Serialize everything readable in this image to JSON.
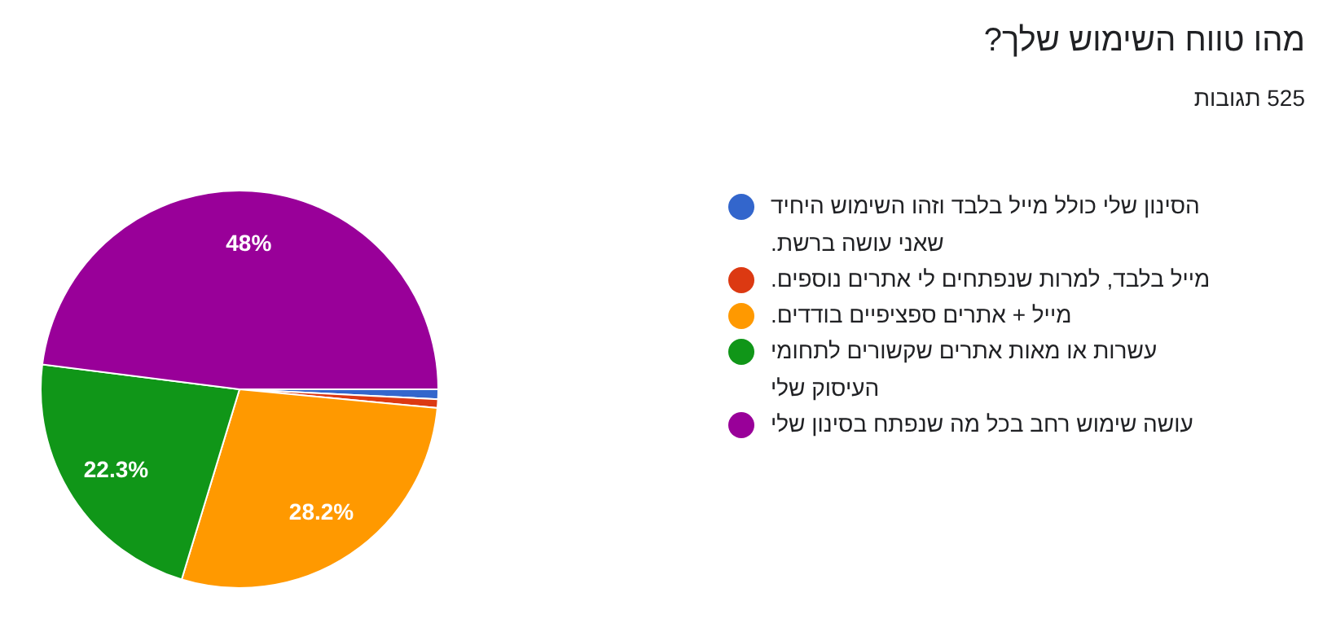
{
  "chart_data": {
    "type": "pie",
    "title": "מהו טווח השימוש שלך?",
    "subtitle": "525 תגובות",
    "categories": [
      "הסינון שלי כולל מייל בלבד וזהו השימוש היחיד שאני עושה ברשת.",
      "מייל בלבד, למרות שנפתחים לי אתרים נוספים.",
      "מייל + אתרים ספציפיים בודדים.",
      "עשרות או מאות אתרים שקשורים לתחומי העיסוק שלי",
      "עושה שימוש רחב בכל מה שנפתח בסינון שלי"
    ],
    "values": [
      0.8,
      0.7,
      28.2,
      22.3,
      48
    ],
    "colors": [
      "#3366cc",
      "#dc3912",
      "#ff9900",
      "#109618",
      "#990099"
    ],
    "value_labels": [
      null,
      null,
      "28.2%",
      "22.3%",
      "48%"
    ],
    "legend": "right"
  }
}
